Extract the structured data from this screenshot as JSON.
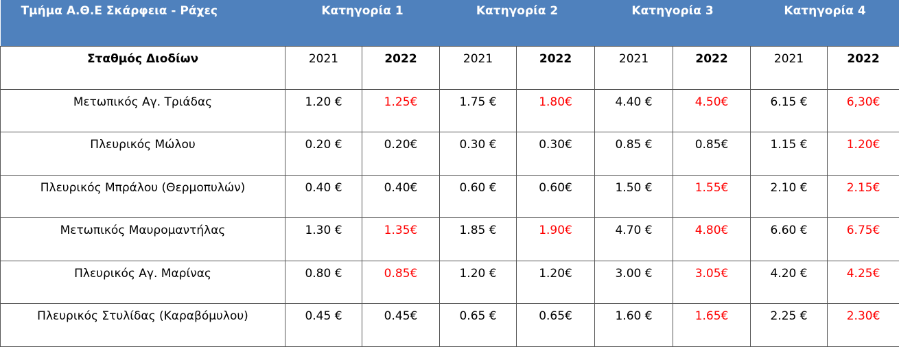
{
  "header": {
    "title": "Τμήμα Α.Θ.Ε Σκάρφεια - Ράχες",
    "categories": [
      "Κατηγορία  1",
      "Κατηγορία 2",
      "Κατηγορία 3",
      "Κατηγορία 4"
    ],
    "background": "#4f81bd"
  },
  "subheader": {
    "label": "Σταθμός Διοδίων",
    "years": [
      "2021",
      "2022",
      "2021",
      "2022",
      "2021",
      "2022",
      "2021",
      "2022"
    ]
  },
  "rows": [
    {
      "station": "Μετωπικός Αγ. Τριάδας",
      "values": [
        "1.20 €",
        "1.25€",
        "1.75 €",
        "1.80€",
        "4.40 €",
        "4.50€",
        "6.15 €",
        "6,30€"
      ],
      "colors": [
        "#000000",
        "#ff0000",
        "#000000",
        "#ff0000",
        "#000000",
        "#ff0000",
        "#000000",
        "#ff0000"
      ]
    },
    {
      "station": "Πλευρικός Μώλου",
      "values": [
        "0.20 €",
        "0.20€",
        "0.30 €",
        "0.30€",
        "0.85 €",
        "0.85€",
        "1.15 €",
        "1.20€"
      ],
      "colors": [
        "#000000",
        "#000000",
        "#000000",
        "#000000",
        "#000000",
        "#000000",
        "#000000",
        "#ff0000"
      ]
    },
    {
      "station": "Πλευρικός Μπράλου (Θερμοπυλών)",
      "values": [
        "0.40 €",
        "0.40€",
        "0.60 €",
        "0.60€",
        "1.50 €",
        "1.55€",
        "2.10 €",
        "2.15€"
      ],
      "colors": [
        "#000000",
        "#000000",
        "#000000",
        "#000000",
        "#000000",
        "#ff0000",
        "#000000",
        "#ff0000"
      ]
    },
    {
      "station": "Μετωπικός Μαυρομαντήλας",
      "values": [
        "1.30 €",
        "1.35€",
        "1.85 €",
        "1.90€",
        "4.70 €",
        "4.80€",
        "6.60 €",
        "6.75€"
      ],
      "colors": [
        "#000000",
        "#ff0000",
        "#000000",
        "#ff0000",
        "#000000",
        "#ff0000",
        "#000000",
        "#ff0000"
      ]
    },
    {
      "station": "Πλευρικός Αγ. Μαρίνας",
      "values": [
        "0.80 €",
        "0.85€",
        "1.20 €",
        "1.20€",
        "3.00 €",
        "3.05€",
        "4.20 €",
        "4.25€"
      ],
      "colors": [
        "#000000",
        "#ff0000",
        "#000000",
        "#000000",
        "#000000",
        "#ff0000",
        "#000000",
        "#ff0000"
      ]
    },
    {
      "station": "Πλευρικός Στυλίδας (Καραβόμυλου)",
      "values": [
        "0.45 €",
        "0.45€",
        "0.65 €",
        "0.65€",
        "1.60 €",
        "1.65€",
        "2.25 €",
        "2.30€"
      ],
      "colors": [
        "#000000",
        "#000000",
        "#000000",
        "#000000",
        "#000000",
        "#ff0000",
        "#000000",
        "#ff0000"
      ]
    }
  ]
}
